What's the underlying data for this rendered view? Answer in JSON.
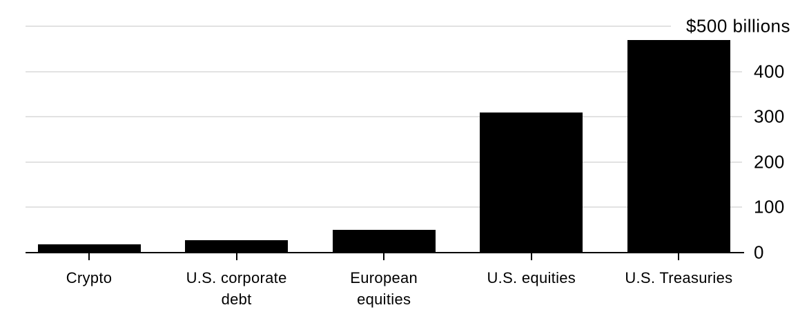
{
  "chart_data": {
    "type": "bar",
    "title": "",
    "categories": [
      "Crypto",
      "U.S. corporate debt",
      "European equities",
      "U.S. equities",
      "U.S. Treasuries"
    ],
    "category_lines": [
      [
        "Crypto"
      ],
      [
        "U.S. corporate",
        "debt"
      ],
      [
        "European",
        "equities"
      ],
      [
        "U.S. equities"
      ],
      [
        "U.S. Treasuries"
      ]
    ],
    "values": [
      18,
      28,
      50,
      310,
      470
    ],
    "ylim": [
      0,
      500
    ],
    "yticks": [
      0,
      100,
      200,
      300,
      400,
      500
    ],
    "ytick_labels": [
      "0",
      "100",
      "200",
      "300",
      "400",
      "$500 billions"
    ],
    "grid": "horizontal",
    "legend_position": "none",
    "colors": {
      "bar": "#000000",
      "gridline": "#e2e2e2",
      "axis": "#000000",
      "text": "#000000",
      "background": "#ffffff"
    }
  }
}
